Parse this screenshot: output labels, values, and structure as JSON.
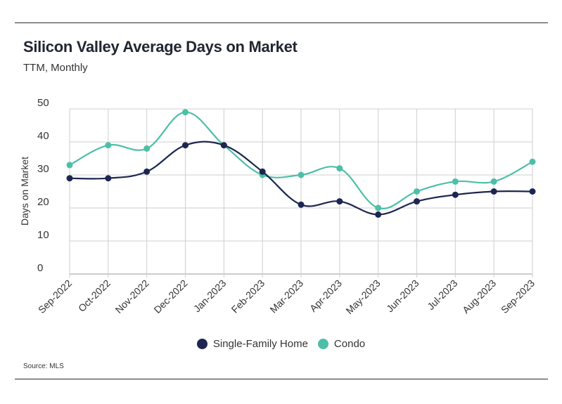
{
  "header": {
    "title": "Silicon Valley Average Days on Market",
    "subtitle": "TTM, Monthly"
  },
  "footer": {
    "source": "Source:  MLS"
  },
  "colors": {
    "single_family": "#1d2651",
    "condo": "#4dbfa8",
    "grid": "#cfcfcf",
    "text": "#333333"
  },
  "chart_data": {
    "type": "line",
    "title": "Silicon Valley Average Days on Market",
    "subtitle": "TTM, Monthly",
    "xlabel": "",
    "ylabel": "Days on Market",
    "ylim": [
      0,
      50
    ],
    "yticks": [
      0,
      10,
      20,
      30,
      40,
      50
    ],
    "grid": true,
    "smooth": true,
    "legend_position": "bottom-center",
    "categories": [
      "Sep-2022",
      "Oct-2022",
      "Nov-2022",
      "Dec-2022",
      "Jan-2023",
      "Feb-2023",
      "Mar-2023",
      "Apr-2023",
      "May-2023",
      "Jun-2023",
      "Jul-2023",
      "Aug-2023",
      "Sep-2023"
    ],
    "series": [
      {
        "name": "Single-Family Home",
        "color": "#1d2651",
        "values": [
          29,
          29,
          31,
          39,
          39,
          31,
          21,
          22,
          18,
          22,
          24,
          25,
          25
        ]
      },
      {
        "name": "Condo",
        "color": "#4dbfa8",
        "values": [
          33,
          39,
          38,
          49,
          39,
          30,
          30,
          32,
          20,
          25,
          28,
          28,
          34
        ]
      }
    ]
  }
}
